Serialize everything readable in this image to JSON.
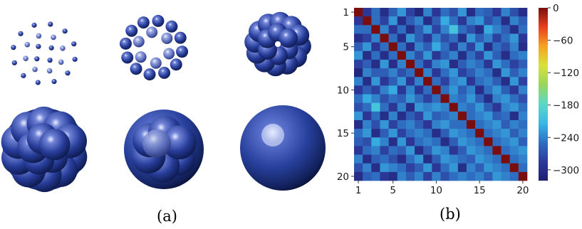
{
  "panels": {
    "a": {
      "label": "(a)",
      "clusters": 6
    },
    "b": {
      "label": "(b)"
    }
  },
  "chart_data": {
    "type": "heatmap",
    "title": "",
    "xlabel": "",
    "ylabel": "",
    "x_ticks": [
      "1",
      "5",
      "10",
      "15",
      "20"
    ],
    "y_ticks": [
      "1",
      "5",
      "10",
      "15",
      "20"
    ],
    "n": 20,
    "colorbar": {
      "ticks": [
        "0",
        "−60",
        "−120",
        "−180",
        "−240",
        "−300"
      ],
      "range": [
        -320,
        0
      ],
      "colors": [
        "#1f1f6f",
        "#2d3a9c",
        "#2f6fc2",
        "#39b8e6",
        "#5bd8c8",
        "#9ad65c",
        "#d9e23a",
        "#f6a321",
        "#e8401e",
        "#7a0d0d"
      ]
    },
    "matrix": [
      [
        0,
        -290,
        -250,
        -300,
        -260,
        -230,
        -280,
        -310,
        -240,
        -290,
        -250,
        -270,
        -230,
        -300,
        -250,
        -260,
        -290,
        -240,
        -270,
        -300
      ],
      [
        -290,
        0,
        -250,
        -280,
        -230,
        -300,
        -260,
        -240,
        -300,
        -260,
        -220,
        -250,
        -290,
        -240,
        -230,
        -270,
        -250,
        -300,
        -240,
        -260
      ],
      [
        -250,
        -250,
        0,
        -240,
        -290,
        -250,
        -300,
        -260,
        -230,
        -280,
        -240,
        -200,
        -250,
        -270,
        -300,
        -220,
        -240,
        -260,
        -300,
        -250
      ],
      [
        -300,
        -280,
        -240,
        0,
        -250,
        -300,
        -230,
        -260,
        -290,
        -240,
        -270,
        -250,
        -300,
        -230,
        -260,
        -240,
        -280,
        -250,
        -230,
        -290
      ],
      [
        -260,
        -230,
        -290,
        -250,
        0,
        -250,
        -300,
        -240,
        -260,
        -220,
        -250,
        -290,
        -240,
        -280,
        -230,
        -300,
        -250,
        -270,
        -240,
        -300
      ],
      [
        -230,
        -300,
        -250,
        -300,
        -250,
        0,
        -240,
        -270,
        -230,
        -290,
        -260,
        -240,
        -300,
        -250,
        -280,
        -230,
        -260,
        -300,
        -250,
        -240
      ],
      [
        -280,
        -260,
        -300,
        -230,
        -300,
        -240,
        0,
        -250,
        -290,
        -240,
        -230,
        -300,
        -260,
        -240,
        -250,
        -290,
        -230,
        -250,
        -280,
        -260
      ],
      [
        -310,
        -240,
        -260,
        -260,
        -240,
        -270,
        -250,
        0,
        -240,
        -290,
        -250,
        -230,
        -280,
        -260,
        -240,
        -250,
        -300,
        -230,
        -260,
        -240
      ],
      [
        -240,
        -300,
        -230,
        -290,
        -260,
        -230,
        -290,
        -240,
        0,
        -250,
        -280,
        -240,
        -230,
        -290,
        -250,
        -240,
        -260,
        -300,
        -230,
        -280
      ],
      [
        -290,
        -260,
        -280,
        -240,
        -220,
        -290,
        -240,
        -290,
        -250,
        0,
        -250,
        -230,
        -260,
        -240,
        -300,
        -250,
        -230,
        -260,
        -290,
        -240
      ],
      [
        -250,
        -220,
        -240,
        -270,
        -250,
        -260,
        -230,
        -250,
        -280,
        -250,
        0,
        -240,
        -250,
        -230,
        -260,
        -300,
        -240,
        -230,
        -250,
        -270
      ],
      [
        -270,
        -250,
        -200,
        -250,
        -290,
        -240,
        -300,
        -230,
        -240,
        -230,
        -240,
        0,
        -240,
        -250,
        -230,
        -260,
        -290,
        -240,
        -230,
        -250
      ],
      [
        -230,
        -290,
        -250,
        -300,
        -240,
        -300,
        -260,
        -280,
        -230,
        -260,
        -250,
        -240,
        0,
        -250,
        -240,
        -230,
        -260,
        -250,
        -300,
        -240
      ],
      [
        -300,
        -240,
        -270,
        -230,
        -280,
        -250,
        -240,
        -260,
        -290,
        -240,
        -230,
        -250,
        -250,
        0,
        -250,
        -240,
        -230,
        -260,
        -240,
        -250
      ],
      [
        -250,
        -230,
        -300,
        -260,
        -230,
        -280,
        -250,
        -240,
        -250,
        -300,
        -260,
        -230,
        -240,
        -250,
        0,
        -250,
        -240,
        -230,
        -260,
        -240
      ],
      [
        -260,
        -270,
        -220,
        -240,
        -300,
        -230,
        -290,
        -250,
        -240,
        -250,
        -300,
        -260,
        -230,
        -240,
        -250,
        0,
        -250,
        -240,
        -230,
        -260
      ],
      [
        -290,
        -250,
        -240,
        -280,
        -250,
        -260,
        -230,
        -300,
        -260,
        -230,
        -240,
        -290,
        -260,
        -230,
        -240,
        -250,
        0,
        -250,
        -240,
        -230
      ],
      [
        -240,
        -300,
        -260,
        -250,
        -270,
        -300,
        -250,
        -230,
        -300,
        -260,
        -230,
        -240,
        -250,
        -260,
        -230,
        -240,
        -250,
        0,
        -250,
        -240
      ],
      [
        -270,
        -240,
        -300,
        -230,
        -240,
        -250,
        -280,
        -260,
        -230,
        -290,
        -250,
        -230,
        -300,
        -240,
        -260,
        -230,
        -240,
        -250,
        0,
        -250
      ],
      [
        -300,
        -260,
        -250,
        -290,
        -300,
        -240,
        -260,
        -240,
        -280,
        -240,
        -270,
        -250,
        -240,
        -250,
        -240,
        -260,
        -230,
        -240,
        -250,
        0
      ]
    ]
  }
}
